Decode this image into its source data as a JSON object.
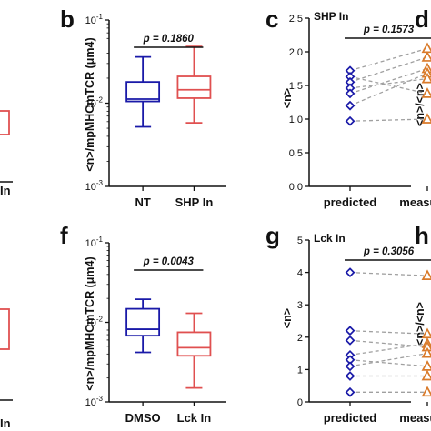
{
  "panels": {
    "b": {
      "label": "b"
    },
    "c": {
      "label": "c"
    },
    "d": {
      "label": "d"
    },
    "f": {
      "label": "f"
    },
    "g": {
      "label": "g"
    },
    "h": {
      "label": "h"
    }
  },
  "partials": {
    "a_category": "In",
    "e_category": "In",
    "d_ylabel": "<n>/<n>",
    "h_ylabel": "<n>/<n>"
  },
  "colors": {
    "control": "#1a1aa8",
    "treated": "#e05050",
    "predicted": "#1a1aa8",
    "measured": "#d97a2a",
    "pair_line": "#a0a0a0"
  },
  "chart_data": [
    {
      "panel": "b",
      "type": "box",
      "y_scale": "log",
      "ylim": [
        0.001,
        0.1
      ],
      "y_ticks": [
        "10-1",
        "10-2",
        "10-3"
      ],
      "ylabel": "<n>/mpMHCmTCR (μm4)",
      "categories": [
        "NT",
        "SHP In"
      ],
      "boxes": [
        {
          "name": "NT",
          "whisker_low": 0.0052,
          "q1": 0.0105,
          "median": 0.0112,
          "q3": 0.018,
          "whisker_high": 0.036
        },
        {
          "name": "SHP In",
          "whisker_low": 0.0058,
          "q1": 0.0115,
          "median": 0.0145,
          "q3": 0.021,
          "whisker_high": 0.048
        }
      ],
      "p_value": "p = 0.1860"
    },
    {
      "panel": "f",
      "type": "box",
      "y_scale": "log",
      "ylim": [
        0.001,
        0.1
      ],
      "y_ticks": [
        "10-1",
        "10-2",
        "10-3"
      ],
      "ylabel": "<n>/mpMHCmTCR (μm4)",
      "categories": [
        "DMSO",
        "Lck In"
      ],
      "boxes": [
        {
          "name": "DMSO",
          "whisker_low": 0.0042,
          "q1": 0.0068,
          "median": 0.0082,
          "q3": 0.0148,
          "whisker_high": 0.0195
        },
        {
          "name": "Lck In",
          "whisker_low": 0.0015,
          "q1": 0.0038,
          "median": 0.0048,
          "q3": 0.0075,
          "whisker_high": 0.013
        }
      ],
      "p_value": "p = 0.0043"
    },
    {
      "panel": "c",
      "type": "scatter",
      "inset_label": "SHP In",
      "ylabel": "<n>",
      "ylim": [
        0.0,
        2.5
      ],
      "y_ticks": [
        "0.0",
        "0.5",
        "1.0",
        "1.5",
        "2.0",
        "2.5"
      ],
      "categories": [
        "predicted",
        "measured"
      ],
      "series": [
        {
          "name": "predicted",
          "values": [
            1.72,
            1.63,
            1.55,
            1.46,
            1.38,
            1.2,
            0.97
          ]
        },
        {
          "name": "measured",
          "values": [
            2.05,
            1.92,
            1.75,
            1.68,
            1.6,
            1.38,
            1.0
          ]
        }
      ],
      "pairs": [
        [
          1.72,
          2.05
        ],
        [
          1.63,
          1.38
        ],
        [
          1.55,
          1.92
        ],
        [
          1.46,
          1.6
        ],
        [
          1.38,
          1.75
        ],
        [
          1.2,
          1.68
        ],
        [
          0.97,
          1.0
        ]
      ],
      "p_value": "p = 0.1573"
    },
    {
      "panel": "g",
      "type": "scatter",
      "inset_label": "Lck In",
      "ylabel": "<n>",
      "ylim": [
        0,
        5
      ],
      "y_ticks": [
        "0",
        "1",
        "2",
        "3",
        "4",
        "5"
      ],
      "categories": [
        "predicted",
        "measured"
      ],
      "series": [
        {
          "name": "predicted",
          "values": [
            4.0,
            2.2,
            1.9,
            1.45,
            1.3,
            1.1,
            0.8,
            0.3
          ]
        },
        {
          "name": "measured",
          "values": [
            3.9,
            2.1,
            1.8,
            1.7,
            1.5,
            1.1,
            0.8,
            0.3
          ]
        }
      ],
      "pairs": [
        [
          4.0,
          3.9
        ],
        [
          2.2,
          2.1
        ],
        [
          1.9,
          1.7
        ],
        [
          1.45,
          1.8
        ],
        [
          1.3,
          1.1
        ],
        [
          1.1,
          1.5
        ],
        [
          0.8,
          0.8
        ],
        [
          0.3,
          0.3
        ]
      ],
      "p_value": "p = 0.3056"
    }
  ]
}
